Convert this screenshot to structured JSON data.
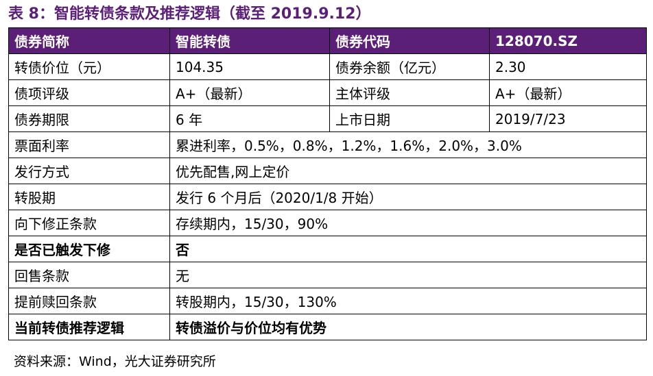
{
  "title": "表 8：智能转债条款及推荐逻辑（截至 2019.9.12）",
  "header": {
    "c1": "债券简称",
    "c2": "智能转债",
    "c3": "债券代码",
    "c4": "128070.SZ"
  },
  "rows4": [
    {
      "c1": "转债价位（元）",
      "c2": "104.35",
      "c3": "债券余额（亿元）",
      "c4": "2.30"
    },
    {
      "c1": "债项评级",
      "c2": "A+（最新）",
      "c3": "主体评级",
      "c4": "A+（最新）"
    },
    {
      "c1": "债券期限",
      "c2": "6 年",
      "c3": "上市日期",
      "c4": "2019/7/23"
    }
  ],
  "rows2": [
    {
      "label": "票面利率",
      "value": "累进利率，0.5%，0.8%，1.2%，1.6%，2.0%，3.0%"
    },
    {
      "label": "发行方式",
      "value": "优先配售,网上定价"
    },
    {
      "label": "转股期",
      "value": "发行 6 个月后（2020/1/8 开始）"
    },
    {
      "label": "向下修正条款",
      "value": "存续期内，15/30，90%"
    },
    {
      "label": "是否已触发下修",
      "value": "否"
    },
    {
      "label": "回售条款",
      "value": "无"
    },
    {
      "label": "提前赎回条款",
      "value": "转股期内，15/30，130%"
    },
    {
      "label": "当前转债推荐逻辑",
      "value": "转债溢价与价位均有优势"
    }
  ],
  "source": "资料来源：Wind，光大证券研究所",
  "colors": {
    "header_bg": "#5b1f78",
    "title": "#5b1f78"
  }
}
